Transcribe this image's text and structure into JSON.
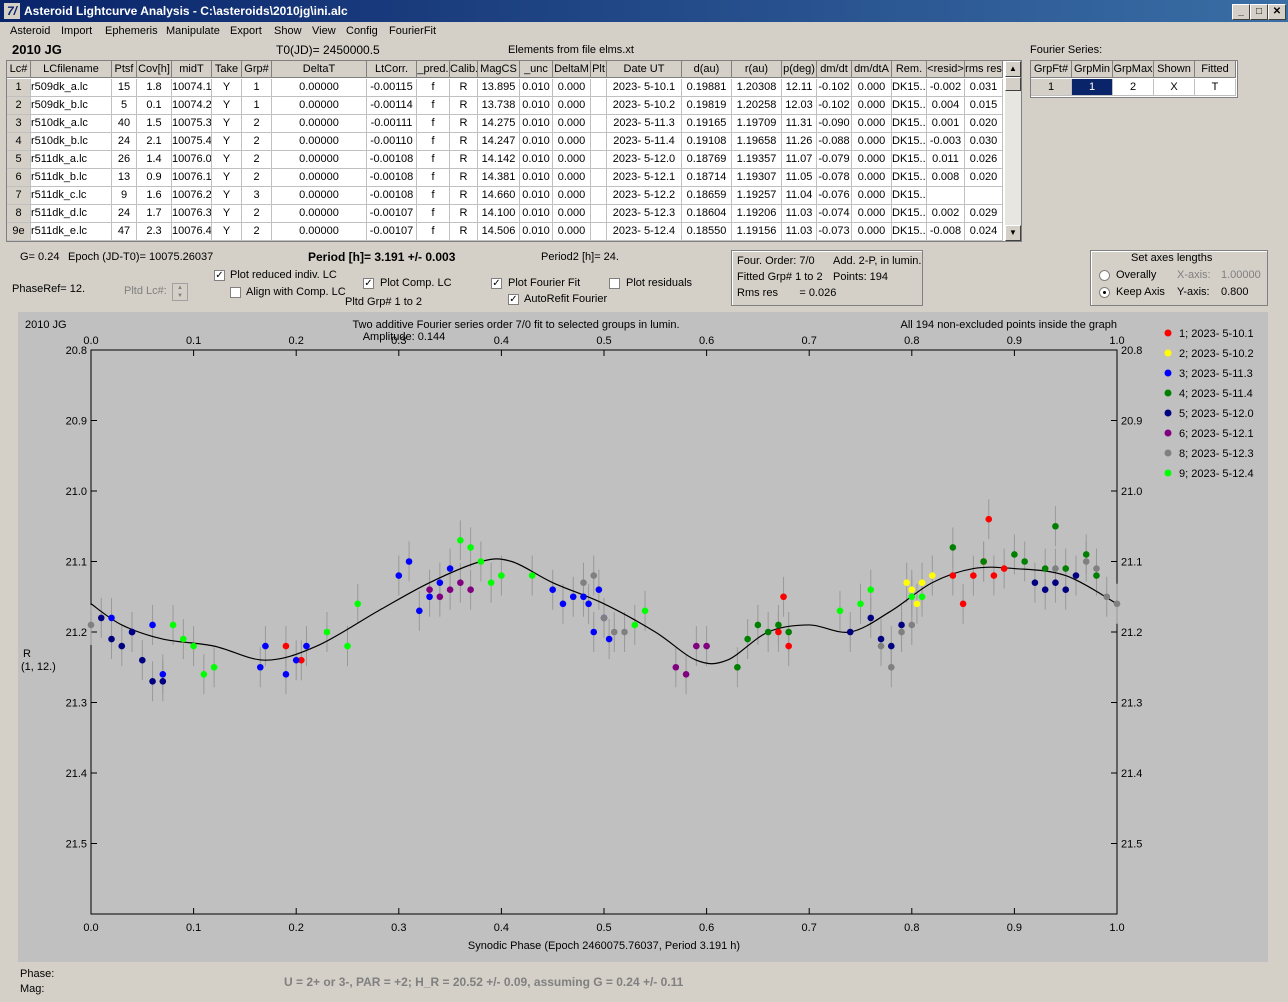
{
  "window": {
    "title": "Asteroid Lightcurve Analysis - C:\\asteroids\\2010jg\\ini.alc",
    "icon_text": "7/"
  },
  "menu": [
    "Asteroid",
    "Import",
    "Ephemeris",
    "Manipulate",
    "Export",
    "Show",
    "View",
    "Config",
    "FourierFit"
  ],
  "header": {
    "object": "2010 JG",
    "t0": "T0(JD)= 2450000.5",
    "elements": "Elements from file elms.xt"
  },
  "table": {
    "columns": [
      "Lc#",
      "LCfilename",
      "Ptsf",
      "Cov[h]",
      "midT",
      "Take",
      "Grp#",
      "DeltaT",
      "LtCorr.",
      "_pred.",
      "Calib.",
      "MagCS",
      "_unc",
      "DeltaM",
      "Plt",
      "Date UT",
      "d(au)",
      "r(au)",
      "p(deg)",
      "dm/dt",
      "dm/dtA",
      "Rem.",
      "<resid>",
      "rms res"
    ],
    "rows": [
      [
        "1",
        "r509dk_a.lc",
        "15",
        "1.8",
        "10074.1",
        "Y",
        "1",
        "0.00000",
        "-0.00115",
        "f",
        "R",
        "13.895",
        "0.010",
        "0.000",
        "",
        "2023- 5-10.1",
        "0.19881",
        "1.20308",
        "12.11",
        "-0.102",
        "0.000",
        "DK15...",
        "-0.002",
        "0.031"
      ],
      [
        "2",
        "r509dk_b.lc",
        "5",
        "0.1",
        "10074.2",
        "Y",
        "1",
        "0.00000",
        "-0.00114",
        "f",
        "R",
        "13.738",
        "0.010",
        "0.000",
        "",
        "2023- 5-10.2",
        "0.19819",
        "1.20258",
        "12.03",
        "-0.102",
        "0.000",
        "DK15...",
        "0.004",
        "0.015"
      ],
      [
        "3",
        "r510dk_a.lc",
        "40",
        "1.5",
        "10075.3",
        "Y",
        "2",
        "0.00000",
        "-0.00111",
        "f",
        "R",
        "14.275",
        "0.010",
        "0.000",
        "",
        "2023- 5-11.3",
        "0.19165",
        "1.19709",
        "11.31",
        "-0.090",
        "0.000",
        "DK15...",
        "0.001",
        "0.020"
      ],
      [
        "4",
        "r510dk_b.lc",
        "24",
        "2.1",
        "10075.4",
        "Y",
        "2",
        "0.00000",
        "-0.00110",
        "f",
        "R",
        "14.247",
        "0.010",
        "0.000",
        "",
        "2023- 5-11.4",
        "0.19108",
        "1.19658",
        "11.26",
        "-0.088",
        "0.000",
        "DK15...",
        "-0.003",
        "0.030"
      ],
      [
        "5",
        "r511dk_a.lc",
        "26",
        "1.4",
        "10076.0",
        "Y",
        "2",
        "0.00000",
        "-0.00108",
        "f",
        "R",
        "14.142",
        "0.010",
        "0.000",
        "",
        "2023- 5-12.0",
        "0.18769",
        "1.19357",
        "11.07",
        "-0.079",
        "0.000",
        "DK15...",
        "0.011",
        "0.026"
      ],
      [
        "6",
        "r511dk_b.lc",
        "13",
        "0.9",
        "10076.1",
        "Y",
        "2",
        "0.00000",
        "-0.00108",
        "f",
        "R",
        "14.381",
        "0.010",
        "0.000",
        "",
        "2023- 5-12.1",
        "0.18714",
        "1.19307",
        "11.05",
        "-0.078",
        "0.000",
        "DK15...",
        "0.008",
        "0.020"
      ],
      [
        "7",
        "r511dk_c.lc",
        "9",
        "1.6",
        "10076.2",
        "Y",
        "3",
        "0.00000",
        "-0.00108",
        "f",
        "R",
        "14.660",
        "0.010",
        "0.000",
        "",
        "2023- 5-12.2",
        "0.18659",
        "1.19257",
        "11.04",
        "-0.076",
        "0.000",
        "DK15...",
        "",
        ""
      ],
      [
        "8",
        "r511dk_d.lc",
        "24",
        "1.7",
        "10076.3",
        "Y",
        "2",
        "0.00000",
        "-0.00107",
        "f",
        "R",
        "14.100",
        "0.010",
        "0.000",
        "",
        "2023- 5-12.3",
        "0.18604",
        "1.19206",
        "11.03",
        "-0.074",
        "0.000",
        "DK15...",
        "0.002",
        "0.029"
      ],
      [
        "9e",
        "r511dk_e.lc",
        "47",
        "2.3",
        "10076.4",
        "Y",
        "2",
        "0.00000",
        "-0.00107",
        "f",
        "R",
        "14.506",
        "0.010",
        "0.000",
        "",
        "2023- 5-12.4",
        "0.18550",
        "1.19156",
        "11.03",
        "-0.073",
        "0.000",
        "DK15...",
        "-0.008",
        "0.024"
      ]
    ]
  },
  "fourier_series": {
    "title": "Fourier Series:",
    "columns": [
      "GrpFt#",
      "GrpMin",
      "GrpMax",
      "Shown",
      "Fitted"
    ],
    "row": [
      "1",
      "1",
      "2",
      "X",
      "T"
    ]
  },
  "params": {
    "g": "G= 0.24",
    "epoch": "Epoch (JD-T0)= 10075.26037",
    "period": "Period [h]= 3.191 +/- 0.003",
    "period2": "Period2 [h]= 24.",
    "phaseref": "PhaseRef= 12.",
    "pltd_lc": "Pltd Lc#:",
    "pltd_grp": "Pltd Grp#  1   to   2"
  },
  "checkboxes": {
    "plot_reduced": {
      "label": "Plot reduced indiv. LC",
      "checked": true
    },
    "align_comp": {
      "label": "Align with Comp. LC",
      "checked": false
    },
    "plot_comp": {
      "label": "Plot Comp. LC",
      "checked": true
    },
    "plot_fourier": {
      "label": "Plot Fourier Fit",
      "checked": true
    },
    "plot_residuals": {
      "label": "Plot residuals",
      "checked": false
    },
    "autorefit": {
      "label": "AutoRefit Fourier",
      "checked": true
    }
  },
  "info_box": {
    "line1a": "Four. Order:  7/0",
    "line1b": "Add. 2-P, in lumin.",
    "line2a": "Fitted Grp# 1 to 2",
    "line2b": "Points: 194",
    "line3": "Rms res       = 0.026"
  },
  "axes_box": {
    "title": "Set axes lengths",
    "overally": "Overally",
    "keep_axis": "Keep Axis",
    "xaxis_label": "X-axis:",
    "xaxis_value": "1.00000",
    "yaxis_label": "Y-axis:",
    "yaxis_value": "0.800",
    "selected": "Keep Axis"
  },
  "plot": {
    "object": "2010 JG",
    "title": "Two additive Fourier series order 7/0 fit to selected groups in lumin.",
    "amplitude": "Amplitude: 0.144",
    "note": "All 194 non-excluded points inside the graph",
    "ylabel_line1": "R",
    "ylabel_line2": "(1, 12.)",
    "xlabel": "Synodic Phase (Epoch 2460075.76037, Period 3.191 h)"
  },
  "status": {
    "phase": "Phase:",
    "mag": "Mag:",
    "result": "U = 2+ or 3-, PAR = +2; H_R = 20.52 +/- 0.09, assuming G = 0.24 +/- 0.11"
  },
  "chart_data": {
    "type": "scatter",
    "xlabel": "Synodic Phase (Epoch 2460075.76037, Period 3.191 h)",
    "ylabel": "R (1, 12.)",
    "xlim": [
      0.0,
      1.0
    ],
    "ylim": [
      20.8,
      21.6
    ],
    "y_inverted": true,
    "xticks": [
      "0.0",
      "0.1",
      "0.2",
      "0.3",
      "0.4",
      "0.5",
      "0.6",
      "0.7",
      "0.8",
      "0.9",
      "1.0"
    ],
    "yticks": [
      "20.8",
      "20.9",
      "21.0",
      "21.1",
      "21.2",
      "21.3",
      "21.4",
      "21.5"
    ],
    "legend_position": "right",
    "fit_curve": [
      [
        0.0,
        21.16
      ],
      [
        0.03,
        21.19
      ],
      [
        0.07,
        21.21
      ],
      [
        0.12,
        21.22
      ],
      [
        0.17,
        21.24
      ],
      [
        0.22,
        21.22
      ],
      [
        0.28,
        21.17
      ],
      [
        0.33,
        21.13
      ],
      [
        0.38,
        21.1
      ],
      [
        0.41,
        21.1
      ],
      [
        0.45,
        21.13
      ],
      [
        0.5,
        21.16
      ],
      [
        0.55,
        21.2
      ],
      [
        0.59,
        21.24
      ],
      [
        0.62,
        21.24
      ],
      [
        0.66,
        21.2
      ],
      [
        0.7,
        21.19
      ],
      [
        0.74,
        21.2
      ],
      [
        0.78,
        21.17
      ],
      [
        0.82,
        21.13
      ],
      [
        0.86,
        21.11
      ],
      [
        0.9,
        21.11
      ],
      [
        0.95,
        21.12
      ],
      [
        1.0,
        21.16
      ]
    ],
    "series": [
      {
        "name": "1; 2023- 5-10.1",
        "color": "#ff0000",
        "points": [
          [
            0.19,
            21.22
          ],
          [
            0.205,
            21.24
          ],
          [
            0.67,
            21.2
          ],
          [
            0.675,
            21.15
          ],
          [
            0.68,
            21.22
          ],
          [
            0.84,
            21.12
          ],
          [
            0.85,
            21.16
          ],
          [
            0.86,
            21.12
          ],
          [
            0.875,
            21.04
          ],
          [
            0.87,
            21.1
          ],
          [
            0.88,
            21.12
          ],
          [
            0.89,
            21.11
          ]
        ]
      },
      {
        "name": "2; 2023- 5-10.2",
        "color": "#ffff00",
        "points": [
          [
            0.795,
            21.13
          ],
          [
            0.8,
            21.14
          ],
          [
            0.805,
            21.16
          ],
          [
            0.81,
            21.13
          ],
          [
            0.82,
            21.12
          ]
        ]
      },
      {
        "name": "3; 2023- 5-11.3",
        "color": "#0000ff",
        "points": [
          [
            0.02,
            21.18
          ],
          [
            0.04,
            21.2
          ],
          [
            0.06,
            21.19
          ],
          [
            0.07,
            21.26
          ],
          [
            0.165,
            21.25
          ],
          [
            0.17,
            21.22
          ],
          [
            0.19,
            21.26
          ],
          [
            0.2,
            21.24
          ],
          [
            0.21,
            21.22
          ],
          [
            0.3,
            21.12
          ],
          [
            0.31,
            21.1
          ],
          [
            0.32,
            21.17
          ],
          [
            0.33,
            21.15
          ],
          [
            0.34,
            21.13
          ],
          [
            0.35,
            21.11
          ],
          [
            0.45,
            21.14
          ],
          [
            0.46,
            21.16
          ],
          [
            0.47,
            21.15
          ],
          [
            0.48,
            21.15
          ],
          [
            0.485,
            21.16
          ],
          [
            0.49,
            21.2
          ],
          [
            0.495,
            21.14
          ],
          [
            0.5,
            21.18
          ],
          [
            0.505,
            21.21
          ]
        ]
      },
      {
        "name": "4; 2023- 5-11.4",
        "color": "#008000",
        "points": [
          [
            0.63,
            21.25
          ],
          [
            0.64,
            21.21
          ],
          [
            0.65,
            21.19
          ],
          [
            0.66,
            21.2
          ],
          [
            0.67,
            21.19
          ],
          [
            0.68,
            21.2
          ],
          [
            0.84,
            21.08
          ],
          [
            0.87,
            21.1
          ],
          [
            0.9,
            21.09
          ],
          [
            0.91,
            21.1
          ],
          [
            0.93,
            21.11
          ],
          [
            0.94,
            21.05
          ],
          [
            0.95,
            21.11
          ],
          [
            0.97,
            21.09
          ],
          [
            0.98,
            21.12
          ]
        ]
      },
      {
        "name": "5; 2023- 5-12.0",
        "color": "#000080",
        "points": [
          [
            0.01,
            21.18
          ],
          [
            0.02,
            21.21
          ],
          [
            0.03,
            21.22
          ],
          [
            0.04,
            21.2
          ],
          [
            0.05,
            21.24
          ],
          [
            0.06,
            21.27
          ],
          [
            0.07,
            21.27
          ],
          [
            0.74,
            21.2
          ],
          [
            0.76,
            21.18
          ],
          [
            0.77,
            21.21
          ],
          [
            0.78,
            21.22
          ],
          [
            0.79,
            21.19
          ],
          [
            0.92,
            21.13
          ],
          [
            0.93,
            21.14
          ],
          [
            0.94,
            21.13
          ],
          [
            0.95,
            21.14
          ],
          [
            0.96,
            21.12
          ]
        ]
      },
      {
        "name": "6; 2023- 5-12.1",
        "color": "#800080",
        "points": [
          [
            0.33,
            21.14
          ],
          [
            0.34,
            21.15
          ],
          [
            0.35,
            21.14
          ],
          [
            0.36,
            21.13
          ],
          [
            0.37,
            21.14
          ],
          [
            0.57,
            21.25
          ],
          [
            0.58,
            21.26
          ],
          [
            0.59,
            21.22
          ],
          [
            0.6,
            21.22
          ]
        ]
      },
      {
        "name": "8; 2023- 5-12.3",
        "color": "#808080",
        "points": [
          [
            0.0,
            21.19
          ],
          [
            0.48,
            21.13
          ],
          [
            0.49,
            21.12
          ],
          [
            0.5,
            21.18
          ],
          [
            0.51,
            21.2
          ],
          [
            0.52,
            21.2
          ],
          [
            0.77,
            21.22
          ],
          [
            0.78,
            21.25
          ],
          [
            0.79,
            21.2
          ],
          [
            0.8,
            21.19
          ],
          [
            0.94,
            21.11
          ],
          [
            0.97,
            21.1
          ],
          [
            0.98,
            21.11
          ],
          [
            0.99,
            21.15
          ],
          [
            1.0,
            21.16
          ]
        ]
      },
      {
        "name": "9; 2023- 5-12.4",
        "color": "#00ff00",
        "points": [
          [
            0.08,
            21.19
          ],
          [
            0.09,
            21.21
          ],
          [
            0.1,
            21.22
          ],
          [
            0.11,
            21.26
          ],
          [
            0.12,
            21.25
          ],
          [
            0.23,
            21.2
          ],
          [
            0.25,
            21.22
          ],
          [
            0.26,
            21.16
          ],
          [
            0.36,
            21.07
          ],
          [
            0.37,
            21.08
          ],
          [
            0.38,
            21.1
          ],
          [
            0.39,
            21.13
          ],
          [
            0.4,
            21.12
          ],
          [
            0.43,
            21.12
          ],
          [
            0.53,
            21.19
          ],
          [
            0.54,
            21.17
          ],
          [
            0.73,
            21.17
          ],
          [
            0.75,
            21.16
          ],
          [
            0.76,
            21.14
          ],
          [
            0.8,
            21.15
          ],
          [
            0.81,
            21.15
          ]
        ]
      }
    ]
  }
}
